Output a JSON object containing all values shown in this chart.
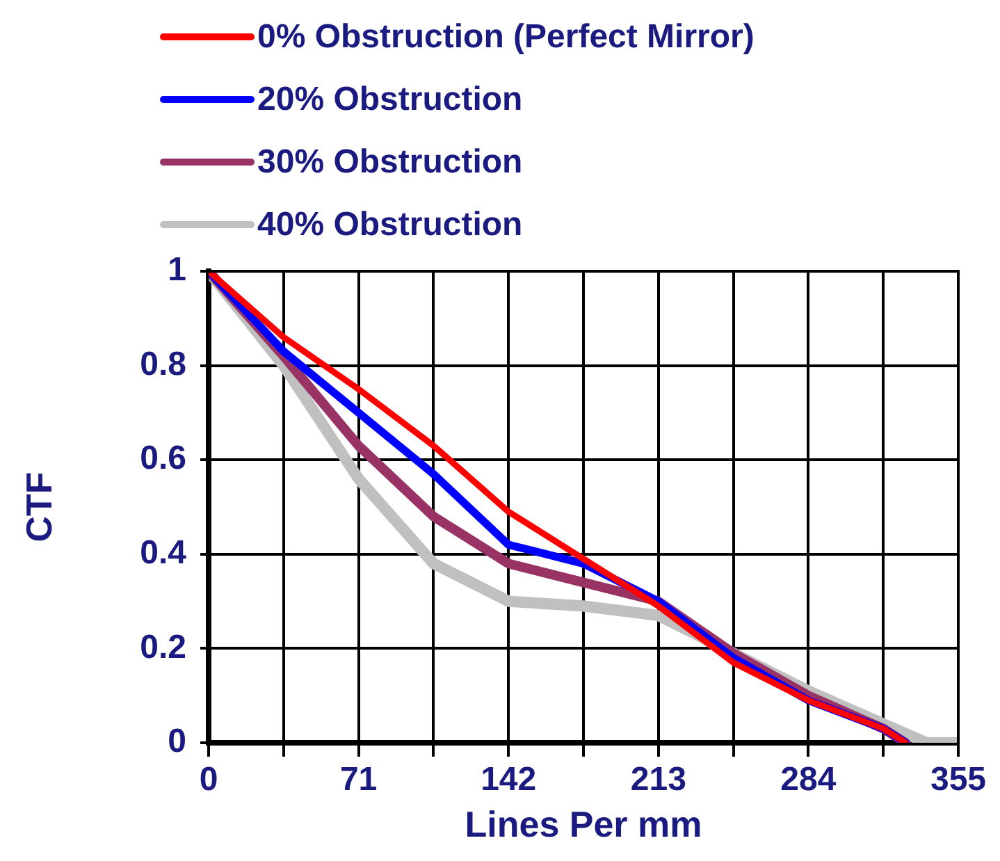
{
  "chart_data": {
    "type": "line",
    "xlabel": "Lines Per mm",
    "ylabel": "CTF",
    "xlim": [
      0,
      355
    ],
    "xticks": [
      0,
      {
        "value": 35.5,
        "label": null
      },
      71,
      {
        "value": 106.5,
        "label": null
      },
      142,
      {
        "value": 177.5,
        "label": null
      },
      213,
      {
        "value": 248.5,
        "label": null
      },
      284,
      {
        "value": 319.5,
        "label": null
      },
      355
    ],
    "ylim": [
      0,
      1
    ],
    "yticks": [
      0,
      0.2,
      0.4,
      0.6,
      0.8,
      1
    ],
    "grid": true,
    "legend": "top left",
    "marker": "none",
    "line_style": "solid",
    "series": [
      {
        "name": "0% Obstruction (Perfect Mirror)",
        "color": "#ff0000",
        "x": [
          0,
          35.5,
          71,
          106.5,
          142,
          177.5,
          213,
          248.5,
          284,
          319.5,
          330
        ],
        "values": [
          1,
          0.86,
          0.75,
          0.63,
          0.49,
          0.39,
          0.29,
          0.17,
          0.09,
          0.03,
          0
        ]
      },
      {
        "name": "20% Obstruction",
        "color": "#0000ff",
        "x": [
          0,
          35.5,
          71,
          106.5,
          142,
          177.5,
          213,
          248.5,
          284,
          319.5,
          330
        ],
        "values": [
          1,
          0.83,
          0.7,
          0.57,
          0.42,
          0.38,
          0.3,
          0.18,
          0.09,
          0.03,
          0
        ]
      },
      {
        "name": "30% Obstruction",
        "color": "#993366",
        "x": [
          0,
          35.5,
          71,
          106.5,
          142,
          177.5,
          213,
          248.5,
          284,
          319.5,
          330
        ],
        "values": [
          1,
          0.82,
          0.63,
          0.48,
          0.38,
          0.34,
          0.3,
          0.19,
          0.1,
          0.03,
          0
        ]
      },
      {
        "name": "40% Obstruction",
        "color": "#c0c0c0",
        "x": [
          0,
          35.5,
          71,
          106.5,
          142,
          177.5,
          213,
          248.5,
          284,
          319.5,
          340,
          355
        ],
        "values": [
          1,
          0.8,
          0.56,
          0.38,
          0.3,
          0.29,
          0.27,
          0.19,
          0.11,
          0.04,
          0,
          0
        ]
      }
    ]
  }
}
